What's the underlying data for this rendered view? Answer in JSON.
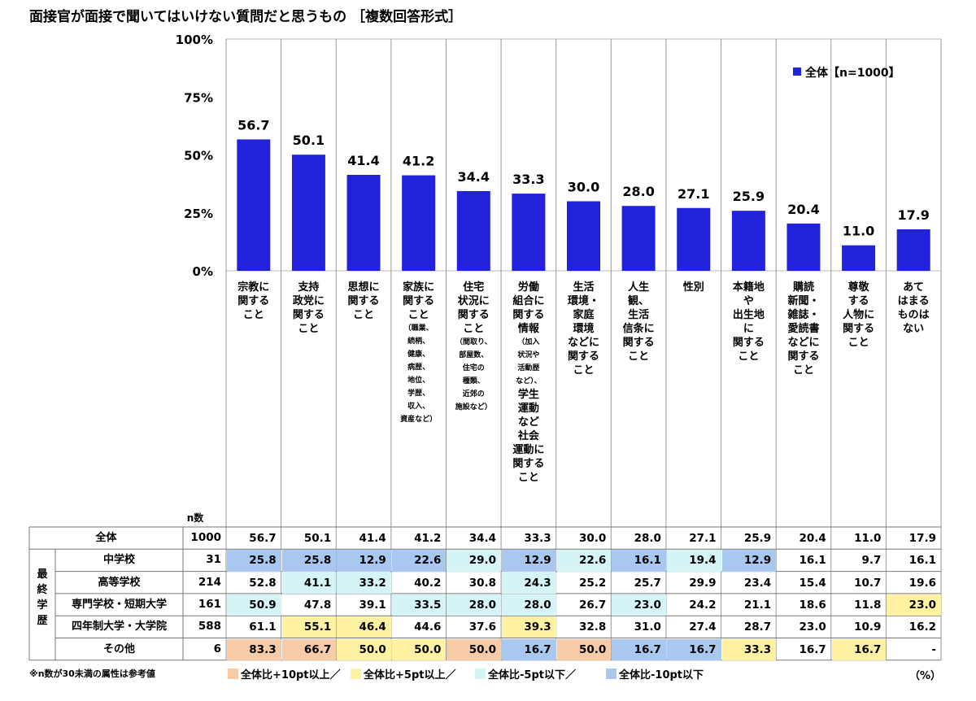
{
  "title": "面接官が面接で聞いてはいけない質問だと思うもの ［複数回答形式］",
  "legend_label": "全体【n=1000】",
  "n_header": "n数",
  "group_label": "最終学歴",
  "footnote": "※n数が30未満の属性は参考値",
  "unit": "（%）",
  "highlight_legend": [
    {
      "label": "全体比+10pt以上／",
      "color": "#f8cba8"
    },
    {
      "label": "全体比+5pt以上／",
      "color": "#fff3a3"
    },
    {
      "label": "全体比-5pt以下／",
      "color": "#d4f4f6"
    },
    {
      "label": "全体比-10pt以下",
      "color": "#a8c8f0"
    }
  ],
  "colors": {
    "bar": "#2222dd",
    "tier_p10": "#f8cba8",
    "tier_p5": "#fff3a3",
    "tier_m5": "#d4f4f6",
    "tier_m10": "#a8c8f0"
  },
  "chart_data": {
    "type": "bar",
    "title": "面接官が面接で聞いてはいけない質問だと思うもの ［複数回答形式］",
    "ylim": [
      0,
      100
    ],
    "yticks": [
      "0%",
      "25%",
      "50%",
      "75%",
      "100%"
    ],
    "categories": [
      {
        "lines": [
          "宗教に",
          "関する",
          "こと"
        ],
        "note": []
      },
      {
        "lines": [
          "支持",
          "政党に",
          "関する",
          "こと"
        ],
        "note": []
      },
      {
        "lines": [
          "思想に",
          "関する",
          "こと"
        ],
        "note": []
      },
      {
        "lines": [
          "家族に",
          "関する",
          "こと"
        ],
        "note": [
          "（職業、",
          "続柄、",
          "健康、",
          "病歴、",
          "地位、",
          "学歴、",
          "収入、",
          "資産など）"
        ]
      },
      {
        "lines": [
          "住宅",
          "状況に",
          "関する",
          "こと"
        ],
        "note": [
          "（間取り、",
          "部屋数、",
          "住宅の",
          "種類、",
          "近郊の",
          "施設など）"
        ]
      },
      {
        "lines": [
          "労働",
          "組合に",
          "関する",
          "情報"
        ],
        "note": [
          "（加入",
          "状況や",
          "活動歴",
          "など）、"
        ],
        "lines2": [
          "学生",
          "運動",
          "など",
          "社会",
          "運動に",
          "関する",
          "こと"
        ]
      },
      {
        "lines": [
          "生活",
          "環境・",
          "家庭",
          "環境",
          "などに",
          "関する",
          "こと"
        ],
        "note": []
      },
      {
        "lines": [
          "人生",
          "観、",
          "生活",
          "信条に",
          "関する",
          "こと"
        ],
        "note": []
      },
      {
        "lines": [
          "性別"
        ],
        "note": []
      },
      {
        "lines": [
          "本籍地",
          "や",
          "出生地",
          "に",
          "関する",
          "こと"
        ],
        "note": []
      },
      {
        "lines": [
          "購読",
          "新聞・",
          "雑誌・",
          "愛読書",
          "などに",
          "関する",
          "こと"
        ],
        "note": []
      },
      {
        "lines": [
          "尊敬",
          "する",
          "人物に",
          "関する",
          "こと"
        ],
        "note": []
      },
      {
        "lines": [
          "あて",
          "はまる",
          "ものは",
          "ない"
        ],
        "note": []
      }
    ],
    "series": [
      {
        "name": "全体【n=1000】",
        "values": [
          56.7,
          50.1,
          41.4,
          41.2,
          34.4,
          33.3,
          30.0,
          28.0,
          27.1,
          25.9,
          20.4,
          11.0,
          17.9
        ]
      }
    ],
    "table_rows": [
      {
        "label": "全体",
        "n": "1000",
        "values": [
          "56.7",
          "50.1",
          "41.4",
          "41.2",
          "34.4",
          "33.3",
          "30.0",
          "28.0",
          "27.1",
          "25.9",
          "20.4",
          "11.0",
          "17.9"
        ],
        "tiers": [
          "",
          "",
          "",
          "",
          "",
          "",
          "",
          "",
          "",
          "",
          "",
          "",
          ""
        ]
      },
      {
        "label": "中学校",
        "n": "31",
        "values": [
          "25.8",
          "25.8",
          "12.9",
          "22.6",
          "29.0",
          "12.9",
          "22.6",
          "16.1",
          "19.4",
          "12.9",
          "16.1",
          "9.7",
          "16.1"
        ],
        "tiers": [
          "m10",
          "m10",
          "m10",
          "m10",
          "m5",
          "m10",
          "m5",
          "m10",
          "m5",
          "m10",
          "",
          "",
          ""
        ]
      },
      {
        "label": "高等学校",
        "n": "214",
        "values": [
          "52.8",
          "41.1",
          "33.2",
          "40.2",
          "30.8",
          "24.3",
          "25.2",
          "25.7",
          "29.9",
          "23.4",
          "15.4",
          "10.7",
          "19.6"
        ],
        "tiers": [
          "",
          "m5",
          "m5",
          "",
          "",
          "m5",
          "",
          "",
          "",
          "",
          "",
          "",
          ""
        ]
      },
      {
        "label": "専門学校・短期大学",
        "n": "161",
        "values": [
          "50.9",
          "47.8",
          "39.1",
          "33.5",
          "28.0",
          "28.0",
          "26.7",
          "23.0",
          "24.2",
          "21.1",
          "18.6",
          "11.8",
          "23.0"
        ],
        "tiers": [
          "m5",
          "",
          "",
          "m5",
          "m5",
          "m5",
          "",
          "m5",
          "",
          "",
          "",
          "",
          "p5"
        ]
      },
      {
        "label": "四年制大学・大学院",
        "n": "588",
        "values": [
          "61.1",
          "55.1",
          "46.4",
          "44.6",
          "37.6",
          "39.3",
          "32.8",
          "31.0",
          "27.4",
          "28.7",
          "23.0",
          "10.9",
          "16.2"
        ],
        "tiers": [
          "",
          "p5",
          "p5",
          "",
          "",
          "p5",
          "",
          "",
          "",
          "",
          "",
          "",
          ""
        ]
      },
      {
        "label": "その他",
        "n": "6",
        "values": [
          "83.3",
          "66.7",
          "50.0",
          "50.0",
          "50.0",
          "16.7",
          "50.0",
          "16.7",
          "16.7",
          "33.3",
          "16.7",
          "16.7",
          "-"
        ],
        "tiers": [
          "p10",
          "p10",
          "p5",
          "p5",
          "p10",
          "m10",
          "p10",
          "m10",
          "m10",
          "p5",
          "",
          "p5",
          ""
        ]
      }
    ]
  }
}
